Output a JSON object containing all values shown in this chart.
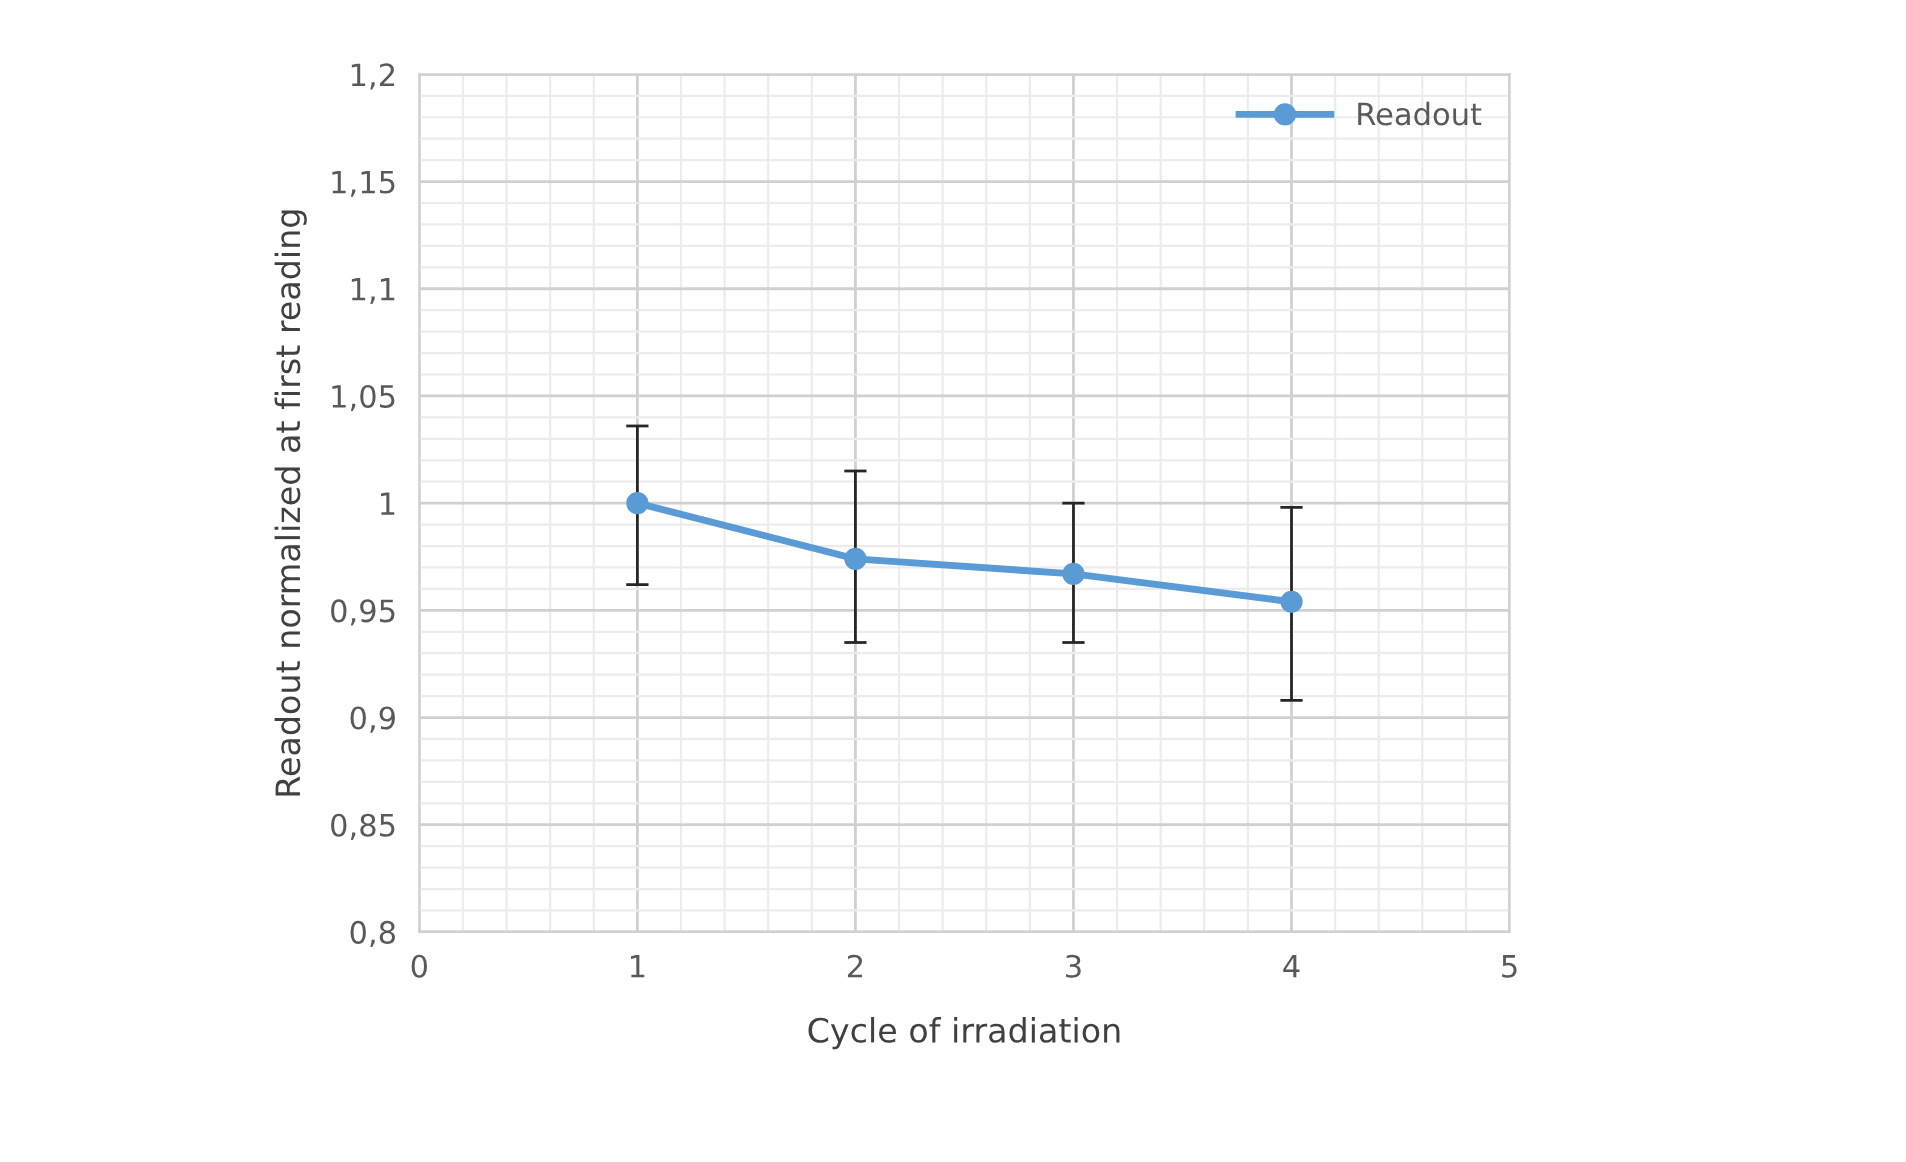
{
  "chart_data": {
    "type": "line",
    "xlabel": "Cycle of irradiation",
    "ylabel": "Readout normalized at first reading",
    "x": [
      1,
      2,
      3,
      4
    ],
    "series": [
      {
        "name": "Readout",
        "color": "#5b9bd5",
        "values": [
          1.0,
          0.974,
          0.967,
          0.954
        ],
        "errors": [
          [
            0.962,
            1.036
          ],
          [
            0.935,
            1.015
          ],
          [
            0.935,
            1.0
          ],
          [
            0.908,
            0.998
          ]
        ]
      }
    ],
    "xlim": [
      0,
      5
    ],
    "xticks": [
      0,
      1,
      2,
      3,
      4,
      5
    ],
    "ylim": [
      0.8,
      1.2
    ],
    "yticks": [
      {
        "value": 0.8,
        "label": "0,8"
      },
      {
        "value": 0.85,
        "label": "0,85"
      },
      {
        "value": 0.9,
        "label": "0,9"
      },
      {
        "value": 0.95,
        "label": "0,95"
      },
      {
        "value": 1,
        "label": "1"
      },
      {
        "value": 1.05,
        "label": "1,05"
      },
      {
        "value": 1.1,
        "label": "1,1"
      },
      {
        "value": 1.15,
        "label": "1,15"
      },
      {
        "value": 1.2,
        "label": "1,2"
      }
    ],
    "grid": true,
    "legend": "top right",
    "marker": "circle",
    "line_style": "solid"
  }
}
